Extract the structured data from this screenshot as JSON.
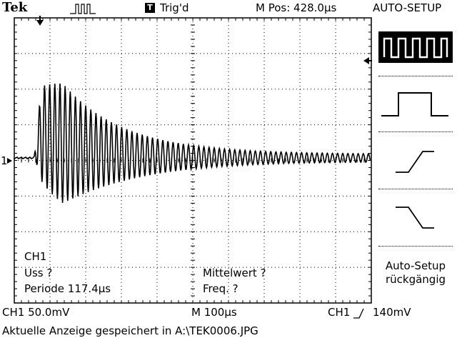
{
  "header": {
    "brand": "Tek",
    "trigger_badge": "T",
    "trigger_status": "Trig'd",
    "position": "M Pos: 428.0µs",
    "menu_title": "AUTO-SETUP"
  },
  "menu": {
    "items": [
      {
        "icon": "square-wave-icon",
        "selected": true
      },
      {
        "icon": "single-pulse-icon",
        "selected": false
      },
      {
        "icon": "rising-edge-icon",
        "selected": false
      },
      {
        "icon": "falling-edge-icon",
        "selected": false
      }
    ],
    "undo_line1": "Auto-Setup",
    "undo_line2": "rückgängig"
  },
  "measurements": {
    "channel": "CH1",
    "uss": "Uss ?",
    "periode": "Periode 117.4µs",
    "mittelwert": "Mittelwert ?",
    "freq": "Freq. ?"
  },
  "status": {
    "ch1_scale": "CH1  50.0mV",
    "timebase": "M 100µs",
    "trigger_source": "CH1",
    "trigger_level": "140mV",
    "message": "Aktuelle Anzeige gespeichert in A:\\TEK0006.JPG"
  },
  "markers": {
    "ch1_ground": "1"
  },
  "trace": {
    "color": "#000000",
    "description": "damped oscillation, period 117.4µs"
  }
}
